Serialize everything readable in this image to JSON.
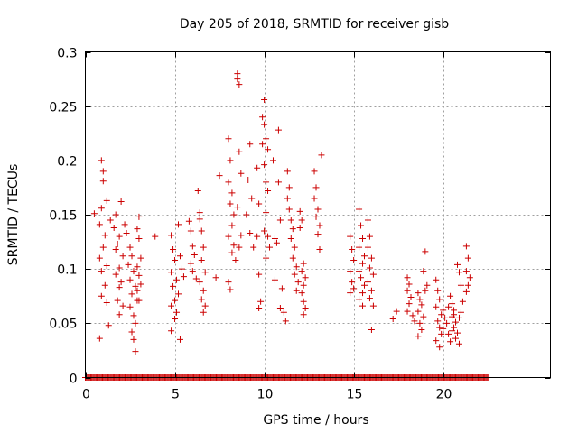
{
  "chart_data": {
    "type": "scatter",
    "title": "Day 205 of 2018, SRMTID for receiver gisb",
    "xlabel": "GPS time / hours",
    "ylabel": "SRMTID / TECUs",
    "xlim": [
      0,
      26
    ],
    "ylim": [
      0,
      0.3
    ],
    "xticks": [
      0,
      5,
      10,
      15,
      20
    ],
    "yticks": [
      0,
      0.05,
      0.1,
      0.15,
      0.2,
      0.25,
      0.3
    ],
    "xtick_labels": [
      "0",
      "5",
      "10",
      "15",
      "20"
    ],
    "ytick_labels": [
      "0",
      "0.05",
      "0.1",
      "0.15",
      "0.2",
      "0.25",
      "0.3"
    ],
    "grid": true,
    "legend": "none",
    "marker": "+",
    "color": "#cc0000",
    "series": [
      {
        "name": "SRMTID",
        "points": [
          [
            0.5,
            0.151
          ],
          [
            0.9,
            0.2
          ],
          [
            1.0,
            0.19
          ],
          [
            1.0,
            0.181
          ],
          [
            0.9,
            0.156
          ],
          [
            0.8,
            0.141
          ],
          [
            1.1,
            0.131
          ],
          [
            1.0,
            0.12
          ],
          [
            0.8,
            0.11
          ],
          [
            1.2,
            0.103
          ],
          [
            0.9,
            0.098
          ],
          [
            1.1,
            0.085
          ],
          [
            0.9,
            0.075
          ],
          [
            1.2,
            0.069
          ],
          [
            0.8,
            0.036
          ],
          [
            1.3,
            0.048
          ],
          [
            1.2,
            0.163
          ],
          [
            1.4,
            0.145
          ],
          [
            1.7,
            0.15
          ],
          [
            1.6,
            0.138
          ],
          [
            1.9,
            0.13
          ],
          [
            2.0,
            0.162
          ],
          [
            1.8,
            0.123
          ],
          [
            2.1,
            0.112
          ],
          [
            1.9,
            0.101
          ],
          [
            1.7,
            0.095
          ],
          [
            2.0,
            0.088
          ],
          [
            1.9,
            0.083
          ],
          [
            1.8,
            0.071
          ],
          [
            2.1,
            0.066
          ],
          [
            1.9,
            0.058
          ],
          [
            1.7,
            0.118
          ],
          [
            2.2,
            0.141
          ],
          [
            2.3,
            0.133
          ],
          [
            2.5,
            0.12
          ],
          [
            2.6,
            0.112
          ],
          [
            2.4,
            0.104
          ],
          [
            2.7,
            0.098
          ],
          [
            2.5,
            0.09
          ],
          [
            2.8,
            0.084
          ],
          [
            2.6,
            0.077
          ],
          [
            2.9,
            0.071
          ],
          [
            2.5,
            0.065
          ],
          [
            2.7,
            0.057
          ],
          [
            2.8,
            0.05
          ],
          [
            2.6,
            0.042
          ],
          [
            2.7,
            0.035
          ],
          [
            2.8,
            0.024
          ],
          [
            3.0,
            0.148
          ],
          [
            2.9,
            0.137
          ],
          [
            3.0,
            0.128
          ],
          [
            3.1,
            0.11
          ],
          [
            2.9,
            0.102
          ],
          [
            3.0,
            0.094
          ],
          [
            3.1,
            0.086
          ],
          [
            2.9,
            0.08
          ],
          [
            3.0,
            0.071
          ],
          [
            3.9,
            0.13
          ],
          [
            4.8,
            0.131
          ],
          [
            4.9,
            0.118
          ],
          [
            5.0,
            0.108
          ],
          [
            4.8,
            0.097
          ],
          [
            5.1,
            0.09
          ],
          [
            4.9,
            0.084
          ],
          [
            5.2,
            0.077
          ],
          [
            5.0,
            0.071
          ],
          [
            4.8,
            0.066
          ],
          [
            5.1,
            0.06
          ],
          [
            5.0,
            0.054
          ],
          [
            4.8,
            0.043
          ],
          [
            5.3,
            0.035
          ],
          [
            5.2,
            0.141
          ],
          [
            5.3,
            0.112
          ],
          [
            5.4,
            0.1
          ],
          [
            5.5,
            0.093
          ],
          [
            5.8,
            0.144
          ],
          [
            5.9,
            0.135
          ],
          [
            6.0,
            0.121
          ],
          [
            6.1,
            0.113
          ],
          [
            5.9,
            0.105
          ],
          [
            6.0,
            0.098
          ],
          [
            6.2,
            0.091
          ],
          [
            6.3,
            0.172
          ],
          [
            6.4,
            0.152
          ],
          [
            6.4,
            0.146
          ],
          [
            6.5,
            0.135
          ],
          [
            6.6,
            0.12
          ],
          [
            6.5,
            0.108
          ],
          [
            6.7,
            0.097
          ],
          [
            6.4,
            0.088
          ],
          [
            6.6,
            0.08
          ],
          [
            6.5,
            0.072
          ],
          [
            6.7,
            0.066
          ],
          [
            6.6,
            0.06
          ],
          [
            7.3,
            0.092
          ],
          [
            7.5,
            0.186
          ],
          [
            8.0,
            0.22
          ],
          [
            8.1,
            0.2
          ],
          [
            8.0,
            0.18
          ],
          [
            8.2,
            0.17
          ],
          [
            8.1,
            0.16
          ],
          [
            8.3,
            0.15
          ],
          [
            8.2,
            0.14
          ],
          [
            8.0,
            0.13
          ],
          [
            8.3,
            0.122
          ],
          [
            8.2,
            0.115
          ],
          [
            8.4,
            0.108
          ],
          [
            8.0,
            0.088
          ],
          [
            8.1,
            0.081
          ],
          [
            8.5,
            0.28
          ],
          [
            8.5,
            0.275
          ],
          [
            8.6,
            0.27
          ],
          [
            8.6,
            0.208
          ],
          [
            8.7,
            0.188
          ],
          [
            8.5,
            0.157
          ],
          [
            8.7,
            0.131
          ],
          [
            8.6,
            0.12
          ],
          [
            9.1,
            0.182
          ],
          [
            9.2,
            0.215
          ],
          [
            9.3,
            0.165
          ],
          [
            9.0,
            0.15
          ],
          [
            9.2,
            0.133
          ],
          [
            9.4,
            0.12
          ],
          [
            9.6,
            0.193
          ],
          [
            9.7,
            0.16
          ],
          [
            9.6,
            0.13
          ],
          [
            9.7,
            0.095
          ],
          [
            9.8,
            0.07
          ],
          [
            9.7,
            0.064
          ],
          [
            10.0,
            0.256
          ],
          [
            9.9,
            0.24
          ],
          [
            10.0,
            0.233
          ],
          [
            10.1,
            0.22
          ],
          [
            9.9,
            0.215
          ],
          [
            10.2,
            0.21
          ],
          [
            10.0,
            0.196
          ],
          [
            10.1,
            0.18
          ],
          [
            10.2,
            0.172
          ],
          [
            10.1,
            0.152
          ],
          [
            10.0,
            0.135
          ],
          [
            10.2,
            0.13
          ],
          [
            10.3,
            0.12
          ],
          [
            10.1,
            0.11
          ],
          [
            10.5,
            0.2
          ],
          [
            10.6,
            0.128
          ],
          [
            10.7,
            0.124
          ],
          [
            10.6,
            0.09
          ],
          [
            10.8,
            0.228
          ],
          [
            10.8,
            0.18
          ],
          [
            10.9,
            0.145
          ],
          [
            11.0,
            0.082
          ],
          [
            10.9,
            0.064
          ],
          [
            11.1,
            0.06
          ],
          [
            11.2,
            0.052
          ],
          [
            11.3,
            0.19
          ],
          [
            11.4,
            0.175
          ],
          [
            11.3,
            0.165
          ],
          [
            11.4,
            0.155
          ],
          [
            11.5,
            0.145
          ],
          [
            11.6,
            0.137
          ],
          [
            11.5,
            0.128
          ],
          [
            11.7,
            0.12
          ],
          [
            11.6,
            0.11
          ],
          [
            11.8,
            0.102
          ],
          [
            11.7,
            0.095
          ],
          [
            11.9,
            0.088
          ],
          [
            11.8,
            0.08
          ],
          [
            12.0,
            0.153
          ],
          [
            12.1,
            0.145
          ],
          [
            12.0,
            0.138
          ],
          [
            12.2,
            0.105
          ],
          [
            12.1,
            0.098
          ],
          [
            12.3,
            0.092
          ],
          [
            12.2,
            0.085
          ],
          [
            12.1,
            0.078
          ],
          [
            12.2,
            0.07
          ],
          [
            12.3,
            0.064
          ],
          [
            12.2,
            0.058
          ],
          [
            12.8,
            0.19
          ],
          [
            12.9,
            0.175
          ],
          [
            12.8,
            0.165
          ],
          [
            13.0,
            0.155
          ],
          [
            12.9,
            0.148
          ],
          [
            13.1,
            0.14
          ],
          [
            13.0,
            0.132
          ],
          [
            13.2,
            0.205
          ],
          [
            13.1,
            0.118
          ],
          [
            14.8,
            0.13
          ],
          [
            14.9,
            0.118
          ],
          [
            15.0,
            0.108
          ],
          [
            14.8,
            0.098
          ],
          [
            14.9,
            0.088
          ],
          [
            15.0,
            0.082
          ],
          [
            14.8,
            0.078
          ],
          [
            15.3,
            0.155
          ],
          [
            15.4,
            0.14
          ],
          [
            15.5,
            0.128
          ],
          [
            15.3,
            0.12
          ],
          [
            15.6,
            0.112
          ],
          [
            15.5,
            0.105
          ],
          [
            15.3,
            0.098
          ],
          [
            15.4,
            0.092
          ],
          [
            15.6,
            0.085
          ],
          [
            15.5,
            0.078
          ],
          [
            15.3,
            0.072
          ],
          [
            15.5,
            0.066
          ],
          [
            15.8,
            0.145
          ],
          [
            15.9,
            0.13
          ],
          [
            15.8,
            0.12
          ],
          [
            16.0,
            0.11
          ],
          [
            15.9,
            0.101
          ],
          [
            16.1,
            0.095
          ],
          [
            15.8,
            0.088
          ],
          [
            16.0,
            0.08
          ],
          [
            15.9,
            0.073
          ],
          [
            16.1,
            0.066
          ],
          [
            16.0,
            0.044
          ],
          [
            17.2,
            0.054
          ],
          [
            17.4,
            0.061
          ],
          [
            18.0,
            0.092
          ],
          [
            18.1,
            0.086
          ],
          [
            18.0,
            0.08
          ],
          [
            18.2,
            0.074
          ],
          [
            18.1,
            0.068
          ],
          [
            18.0,
            0.061
          ],
          [
            18.3,
            0.057
          ],
          [
            18.4,
            0.052
          ],
          [
            18.6,
            0.078
          ],
          [
            18.7,
            0.072
          ],
          [
            18.8,
            0.067
          ],
          [
            18.6,
            0.061
          ],
          [
            18.9,
            0.056
          ],
          [
            18.7,
            0.05
          ],
          [
            18.8,
            0.044
          ],
          [
            18.6,
            0.038
          ],
          [
            18.9,
            0.098
          ],
          [
            19.0,
            0.116
          ],
          [
            19.1,
            0.085
          ],
          [
            19.0,
            0.08
          ],
          [
            19.6,
            0.09
          ],
          [
            19.7,
            0.08
          ],
          [
            19.8,
            0.072
          ],
          [
            19.6,
            0.065
          ],
          [
            19.9,
            0.058
          ],
          [
            19.7,
            0.052
          ],
          [
            19.8,
            0.046
          ],
          [
            19.9,
            0.04
          ],
          [
            19.6,
            0.034
          ],
          [
            19.8,
            0.028
          ],
          [
            20.0,
            0.062
          ],
          [
            20.1,
            0.055
          ],
          [
            20.2,
            0.05
          ],
          [
            20.0,
            0.045
          ],
          [
            20.3,
            0.04
          ],
          [
            20.4,
            0.075
          ],
          [
            20.5,
            0.068
          ],
          [
            20.6,
            0.062
          ],
          [
            20.5,
            0.056
          ],
          [
            20.7,
            0.051
          ],
          [
            20.6,
            0.046
          ],
          [
            20.8,
            0.041
          ],
          [
            20.7,
            0.036
          ],
          [
            20.9,
            0.031
          ],
          [
            20.8,
            0.104
          ],
          [
            20.9,
            0.097
          ],
          [
            21.0,
            0.085
          ],
          [
            21.1,
            0.07
          ],
          [
            21.3,
            0.121
          ],
          [
            21.4,
            0.11
          ],
          [
            21.3,
            0.098
          ],
          [
            21.5,
            0.092
          ],
          [
            21.4,
            0.085
          ],
          [
            21.3,
            0.079
          ],
          [
            20.3,
            0.065
          ],
          [
            20.6,
            0.058
          ],
          [
            20.4,
            0.033
          ],
          [
            20.5,
            0.043
          ],
          [
            20.9,
            0.055
          ],
          [
            21.0,
            0.06
          ]
        ],
        "baseline_range": [
          0,
          22.6
        ]
      }
    ]
  }
}
